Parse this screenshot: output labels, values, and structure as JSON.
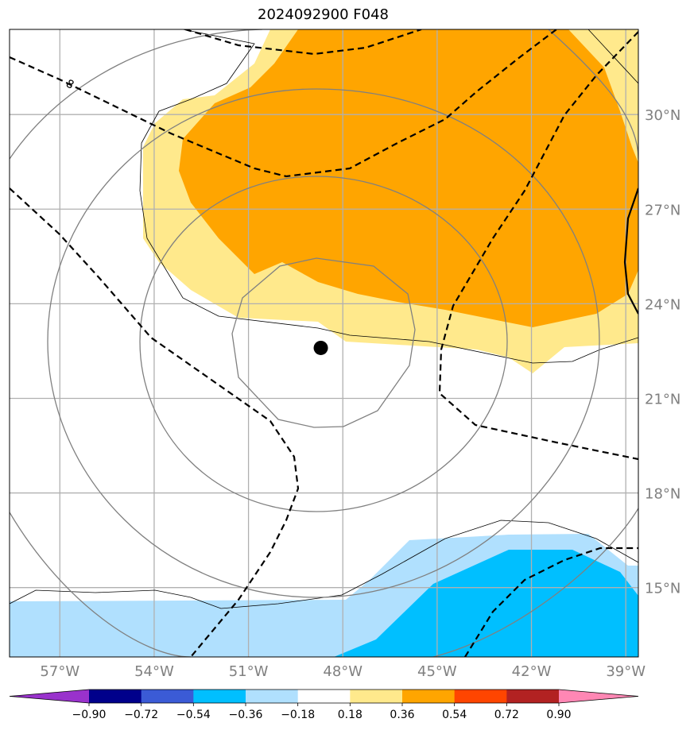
{
  "chart_data": {
    "type": "map",
    "title": "2024092900 F048",
    "lon_ticks": [
      "57°W",
      "54°W",
      "51°W",
      "48°W",
      "45°W",
      "42°W",
      "39°W"
    ],
    "lat_ticks": [
      "30°N",
      "27°N",
      "24°N",
      "21°N",
      "18°N",
      "15°N"
    ],
    "lon_range": [
      -58.6,
      -38.6
    ],
    "lat_range": [
      12.8,
      32.7
    ],
    "grid": true,
    "storm_center": {
      "lon": -48.7,
      "lat": 22.6
    },
    "contour_label": "8",
    "colorbar": {
      "ticks": [
        "−0.90",
        "−0.72",
        "−0.54",
        "−0.36",
        "−0.18",
        "0.18",
        "0.36",
        "0.54",
        "0.72",
        "0.90"
      ],
      "colors": [
        "#9932cc",
        "#00008b",
        "#3b5bd6",
        "#00bfff",
        "#b0e0fe",
        "#ffffff",
        "#ffe98c",
        "#ffa500",
        "#ff4500",
        "#b22222",
        "#ff87b4"
      ],
      "extend": "both"
    }
  }
}
